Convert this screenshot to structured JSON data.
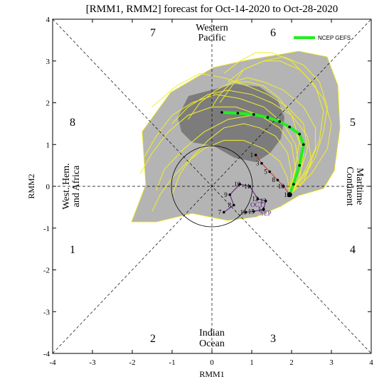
{
  "chart_data": {
    "type": "line",
    "title": "[RMM1, RMM2] forecast for Oct-14-2020 to Oct-28-2020",
    "xlabel": "RMM1",
    "ylabel": "RMM2",
    "xlim": [
      -4,
      4
    ],
    "ylim": [
      -4,
      4
    ],
    "xticks": [
      "-4",
      "-3",
      "-2",
      "-1",
      "0",
      "1",
      "2",
      "3",
      "4"
    ],
    "yticks": [
      "-4",
      "-3",
      "-2",
      "-1",
      "0",
      "1",
      "2",
      "3",
      "4"
    ],
    "phase_labels": [
      "1",
      "2",
      "3",
      "4",
      "5",
      "6",
      "7",
      "8"
    ],
    "region_labels": {
      "top_line1": "Western",
      "top_line2": "Pacific",
      "bottom_line1": "Indian",
      "bottom_line2": "Ocean",
      "left_line1": "West. Hem.",
      "left_line2": "and Africa",
      "right_line1": "Maritime",
      "right_line2": "Continent"
    },
    "legend": {
      "label": "NCEP GEFS",
      "position": "top-right",
      "color": "#22ee22"
    },
    "colors": {
      "outer_spread": "#b4b4b4",
      "inner_spread": "#7c7c7c",
      "ensemble": "#f2ef2a",
      "mean": "#22ee22",
      "sep": "#5a1a8a",
      "oct": "#c0392b"
    },
    "ensemble_mean": {
      "name": "NCEP GEFS",
      "x": [
        1.95,
        2.05,
        2.2,
        2.3,
        2.2,
        1.95,
        1.7,
        1.4,
        1.05,
        0.65,
        0.25
      ],
      "y": [
        -0.2,
        0.05,
        0.5,
        1.0,
        1.25,
        1.42,
        1.55,
        1.65,
        1.72,
        1.75,
        1.77
      ]
    },
    "ensemble_members": [
      {
        "x": [
          1.95,
          2.2,
          2.4,
          2.3,
          1.9,
          1.4,
          0.9,
          0.3,
          -0.3,
          -0.9,
          -1.5
        ],
        "y": [
          -0.2,
          0.3,
          0.9,
          1.5,
          1.9,
          2.2,
          2.4,
          2.6,
          2.7,
          2.4,
          1.9
        ]
      },
      {
        "x": [
          1.95,
          2.3,
          2.6,
          2.8,
          2.9,
          2.7,
          2.3,
          1.8,
          1.3,
          0.8,
          0.4
        ],
        "y": [
          -0.2,
          0.2,
          0.7,
          1.3,
          1.9,
          2.5,
          2.9,
          3.1,
          3.0,
          2.8,
          2.5
        ]
      },
      {
        "x": [
          1.95,
          2.1,
          2.0,
          1.7,
          1.2,
          0.6,
          0.0,
          -0.6,
          -1.1,
          -1.5,
          -1.8
        ],
        "y": [
          -0.2,
          0.4,
          1.0,
          1.4,
          1.7,
          1.9,
          1.9,
          1.7,
          1.3,
          0.8,
          0.3
        ]
      },
      {
        "x": [
          1.95,
          2.2,
          2.3,
          2.1,
          1.6,
          1.0,
          0.4,
          -0.2,
          -0.7,
          -1.2,
          -1.4
        ],
        "y": [
          -0.2,
          0.2,
          0.8,
          1.3,
          1.6,
          1.7,
          1.6,
          1.3,
          0.9,
          0.4,
          -0.1
        ]
      },
      {
        "x": [
          1.95,
          2.4,
          2.7,
          2.8,
          2.6,
          2.2,
          1.7,
          1.3,
          0.8,
          0.5,
          0.2
        ],
        "y": [
          -0.2,
          0.4,
          1.1,
          1.8,
          2.4,
          2.8,
          3.0,
          3.0,
          2.8,
          2.4,
          2.0
        ]
      },
      {
        "x": [
          1.95,
          2.0,
          1.9,
          1.6,
          1.2,
          0.8,
          0.3,
          -0.1,
          -0.5,
          -0.8,
          -1.0
        ],
        "y": [
          -0.2,
          0.3,
          0.8,
          1.2,
          1.4,
          1.5,
          1.4,
          1.1,
          0.7,
          0.3,
          -0.2
        ]
      },
      {
        "x": [
          1.95,
          2.3,
          2.5,
          2.4,
          2.0,
          1.5,
          1.0,
          0.4,
          -0.1,
          -0.6,
          -1.0
        ],
        "y": [
          -0.2,
          0.1,
          0.6,
          1.2,
          1.7,
          2.0,
          2.2,
          2.3,
          2.2,
          1.9,
          1.5
        ]
      },
      {
        "x": [
          1.95,
          2.1,
          2.2,
          2.0,
          1.7,
          1.3,
          0.9,
          0.5,
          0.1,
          -0.3,
          -0.6
        ],
        "y": [
          -0.2,
          0.5,
          1.1,
          1.7,
          2.1,
          2.4,
          2.5,
          2.5,
          2.3,
          2.0,
          1.6
        ]
      },
      {
        "x": [
          1.95,
          2.5,
          2.9,
          3.0,
          2.8,
          2.4,
          2.0,
          1.5,
          1.1,
          0.7,
          0.3
        ],
        "y": [
          -0.2,
          0.3,
          0.9,
          1.5,
          2.1,
          2.6,
          3.0,
          3.2,
          3.2,
          3.0,
          2.7
        ]
      },
      {
        "x": [
          1.95,
          1.9,
          1.7,
          1.3,
          0.8,
          0.3,
          -0.2,
          -0.6,
          -1.0,
          -1.3,
          -1.5
        ],
        "y": [
          -0.2,
          0.2,
          0.6,
          0.9,
          1.1,
          1.1,
          0.9,
          0.6,
          0.2,
          -0.2,
          -0.6
        ]
      },
      {
        "x": [
          1.95,
          2.2,
          2.1,
          1.8,
          1.3,
          0.7,
          0.1,
          -0.5,
          -1.0,
          -1.4,
          -1.7
        ],
        "y": [
          -0.2,
          0.4,
          1.0,
          1.5,
          1.9,
          2.1,
          2.2,
          2.0,
          1.7,
          1.2,
          0.7
        ]
      },
      {
        "x": [
          1.95,
          2.3,
          2.6,
          2.6,
          2.3,
          1.8,
          1.3,
          0.9,
          0.5,
          0.2,
          0.0
        ],
        "y": [
          -0.2,
          0.3,
          0.9,
          1.4,
          1.9,
          2.3,
          2.5,
          2.6,
          2.5,
          2.2,
          1.9
        ]
      }
    ],
    "observed_sep": {
      "name": "SEP",
      "x": [
        0.3,
        0.55,
        0.45,
        0.7,
        0.95,
        1.15,
        1.35,
        1.3,
        1.05,
        0.85
      ],
      "y": [
        -0.62,
        -0.45,
        -0.2,
        0.05,
        0.0,
        -0.3,
        -0.35,
        -0.55,
        -0.6,
        -0.62
      ],
      "labels": [
        "7",
        "8",
        "9",
        "10",
        "11",
        "12",
        "13",
        "14",
        "15",
        "16"
      ]
    },
    "observed_oct": {
      "name": "OCT",
      "x": [
        1.1,
        1.25,
        1.45,
        1.65,
        1.8,
        1.95
      ],
      "y": [
        0.75,
        0.55,
        0.35,
        0.15,
        0.0,
        -0.2
      ],
      "labels": [
        "1",
        "3",
        "5",
        "8",
        "10",
        "12"
      ]
    },
    "annotations": [
      "SEP",
      "OCT"
    ]
  }
}
